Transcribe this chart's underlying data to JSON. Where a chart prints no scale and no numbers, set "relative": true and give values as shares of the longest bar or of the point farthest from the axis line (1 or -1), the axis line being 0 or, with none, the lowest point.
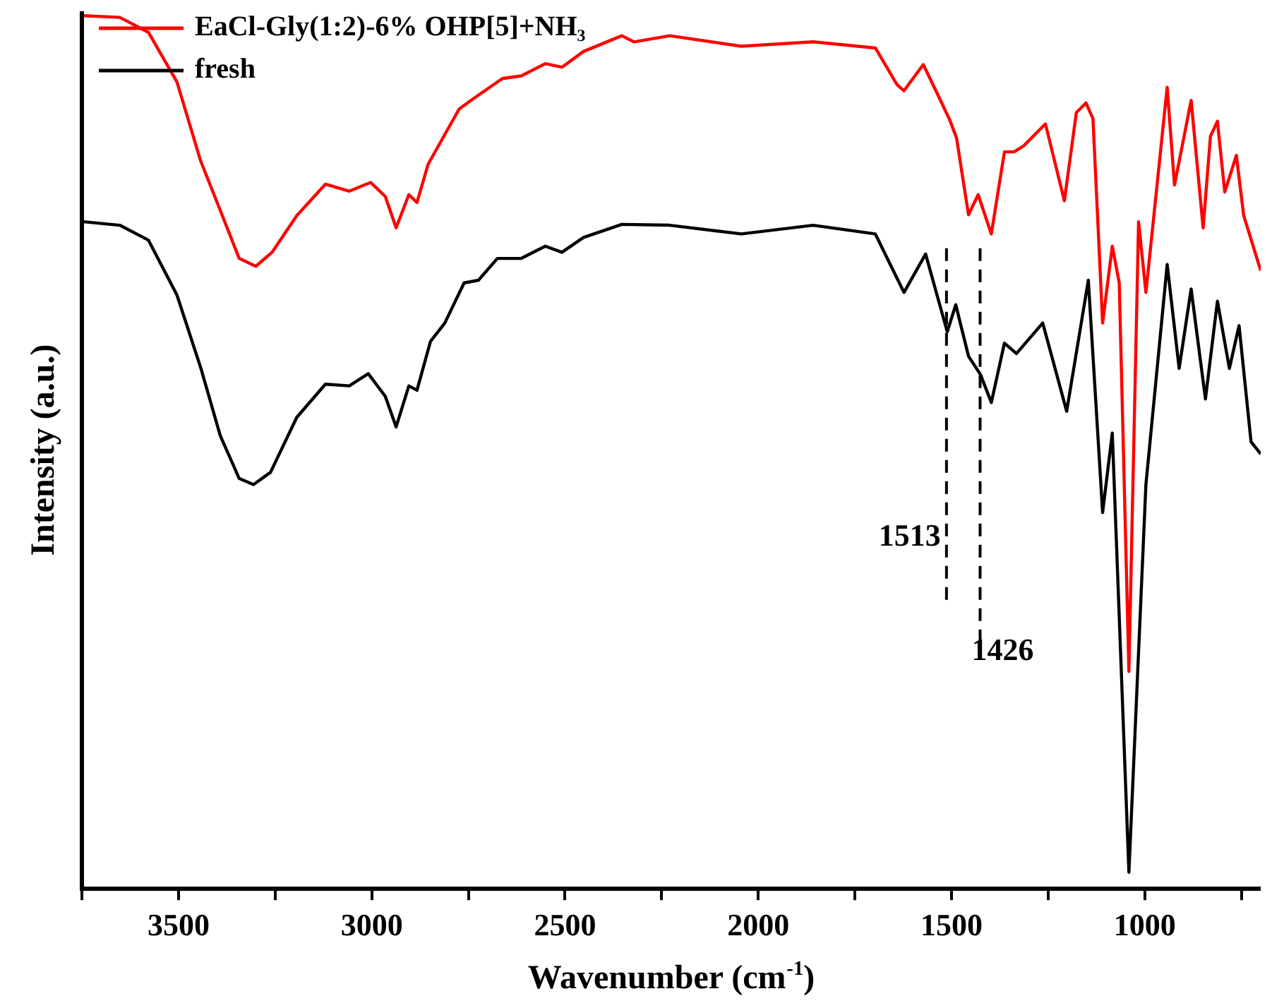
{
  "chart_data": {
    "type": "line",
    "relative": true,
    "xlabel": "Wavenumber (cm$^{-1}$)",
    "ylabel": "Intensity (a.u.)",
    "legend": "top left",
    "grid": false,
    "marker": "none",
    "line_style": "solid",
    "tick_labels": "x",
    "xlim": [
      3750,
      700
    ],
    "xticks": [
      {
        "value": 3750,
        "label": null
      },
      3500,
      {
        "value": 3250,
        "label": null
      },
      3000,
      {
        "value": 2750,
        "label": null
      },
      2500,
      {
        "value": 2250,
        "label": null
      },
      2000,
      {
        "value": 1750,
        "label": null
      },
      1500,
      {
        "value": 1250,
        "label": null
      },
      1000,
      {
        "value": 750,
        "label": null
      }
    ],
    "ref_lines": [
      {
        "axis": "x",
        "value": 1513,
        "label": "1513",
        "line_style": "dashed",
        "color": "#000000"
      },
      {
        "axis": "x",
        "value": 1426,
        "label": "1426",
        "line_style": "dashed",
        "color": "#000000"
      }
    ],
    "series": [
      {
        "name": "EaCl-Gly(1:2)-6% OHP[5]+NH₃",
        "color": "#ff0000",
        "x": [
          3745,
          3652,
          3578,
          3504,
          3443,
          3392,
          3343,
          3300,
          3258,
          3194,
          3120,
          3058,
          3003,
          2965,
          2937,
          2904,
          2883,
          2854,
          2774,
          2737,
          2662,
          2613,
          2551,
          2508,
          2452,
          2353,
          2322,
          2229,
          2044,
          1858,
          1697,
          1641,
          1623,
          1573,
          1536,
          1505,
          1487,
          1456,
          1431,
          1397,
          1363,
          1338,
          1313,
          1257,
          1208,
          1177,
          1152,
          1134,
          1109,
          1084,
          1066,
          1041,
          1016,
          997,
          942,
          923,
          880,
          849,
          830,
          812,
          793,
          763,
          744,
          700
        ],
        "values": [
          1.0,
          0.998,
          0.981,
          0.924,
          0.834,
          0.777,
          0.722,
          0.713,
          0.729,
          0.771,
          0.807,
          0.799,
          0.809,
          0.793,
          0.757,
          0.795,
          0.786,
          0.83,
          0.893,
          0.905,
          0.928,
          0.931,
          0.945,
          0.941,
          0.959,
          0.977,
          0.97,
          0.977,
          0.965,
          0.97,
          0.963,
          0.921,
          0.914,
          0.944,
          0.91,
          0.881,
          0.86,
          0.772,
          0.795,
          0.75,
          0.844,
          0.844,
          0.851,
          0.876,
          0.788,
          0.889,
          0.9,
          0.882,
          0.648,
          0.736,
          0.694,
          0.249,
          0.764,
          0.683,
          0.918,
          0.806,
          0.903,
          0.757,
          0.862,
          0.879,
          0.798,
          0.84,
          0.771,
          0.708
        ]
      },
      {
        "name": "fresh",
        "color": "#000000",
        "x": [
          3745,
          3652,
          3578,
          3504,
          3442,
          3392,
          3343,
          3306,
          3262,
          3194,
          3120,
          3058,
          3009,
          2965,
          2937,
          2904,
          2883,
          2848,
          2811,
          2761,
          2724,
          2675,
          2613,
          2551,
          2508,
          2452,
          2353,
          2229,
          2044,
          1858,
          1697,
          1623,
          1567,
          1511,
          1489,
          1456,
          1425,
          1397,
          1363,
          1332,
          1264,
          1202,
          1146,
          1109,
          1084,
          1041,
          997,
          942,
          911,
          880,
          843,
          812,
          781,
          756,
          725,
          700
        ],
        "values": [
          0.764,
          0.76,
          0.743,
          0.68,
          0.596,
          0.519,
          0.47,
          0.463,
          0.477,
          0.54,
          0.578,
          0.576,
          0.59,
          0.564,
          0.529,
          0.576,
          0.571,
          0.627,
          0.648,
          0.694,
          0.697,
          0.722,
          0.722,
          0.736,
          0.729,
          0.746,
          0.761,
          0.76,
          0.75,
          0.76,
          0.75,
          0.683,
          0.727,
          0.638,
          0.669,
          0.61,
          0.589,
          0.557,
          0.625,
          0.613,
          0.648,
          0.547,
          0.697,
          0.431,
          0.522,
          0.019,
          0.463,
          0.715,
          0.596,
          0.687,
          0.561,
          0.673,
          0.596,
          0.645,
          0.512,
          0.498
        ]
      }
    ]
  }
}
